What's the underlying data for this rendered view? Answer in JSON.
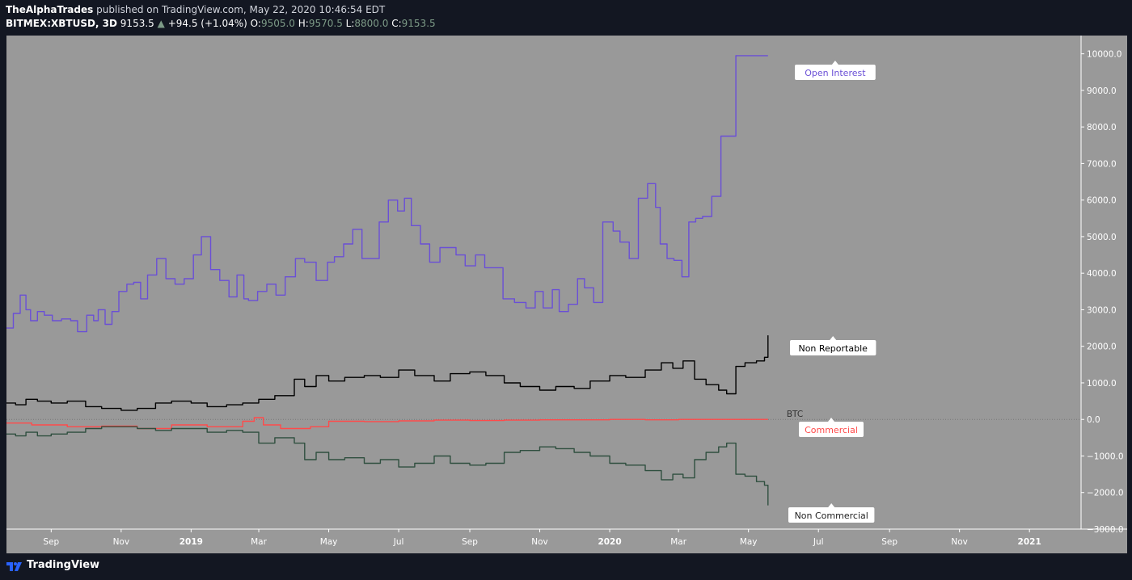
{
  "header": {
    "publisher": "TheAlphaTrades",
    "published_text": "published on TradingView.com, May 22, 2020 10:46:54 EDT",
    "symbol": "BITMEX:XBTUSD, 3D",
    "last": "9153.5",
    "change_arrow": "▲",
    "change": "+94.5 (+1.04%)",
    "o_label": "O:",
    "o_value": "9505.0",
    "h_label": "H:",
    "h_value": "9570.5",
    "l_label": "L:",
    "l_value": "8800.0",
    "c_label": "C:",
    "c_value": "9153.5"
  },
  "footer": {
    "brand": "TradingView",
    "logo_icon": "tradingview-logo-icon"
  },
  "colors": {
    "plot_bg": "#999999",
    "open_interest": "#6a4fd6",
    "non_reportable": "#000000",
    "commercial": "#ff4a4a",
    "non_commercial": "#2f4f3f"
  },
  "chart_data": {
    "type": "line",
    "ylim": [
      -3000,
      10500
    ],
    "yticks": [
      10000,
      9000,
      8000,
      7000,
      6000,
      5000,
      4000,
      3000,
      2000,
      1000,
      0,
      -1000,
      -2000,
      -3000
    ],
    "ytick_labels": [
      "10000.0",
      "9000.0",
      "8000.0",
      "7000.0",
      "6000.0",
      "5000.0",
      "4000.0",
      "3000.0",
      "2000.0",
      "1000.0",
      "0.0",
      "−1000.0",
      "−2000.0",
      "−3000.0"
    ],
    "xlim": [
      "2018-07-24",
      "2021-02-15"
    ],
    "xticks": [
      {
        "date": "2018-09-01",
        "label": "Sep",
        "bold": false
      },
      {
        "date": "2018-11-01",
        "label": "Nov",
        "bold": false
      },
      {
        "date": "2019-01-01",
        "label": "2019",
        "bold": true
      },
      {
        "date": "2019-03-01",
        "label": "Mar",
        "bold": false
      },
      {
        "date": "2019-05-01",
        "label": "May",
        "bold": false
      },
      {
        "date": "2019-07-01",
        "label": "Jul",
        "bold": false
      },
      {
        "date": "2019-09-01",
        "label": "Sep",
        "bold": false
      },
      {
        "date": "2019-11-01",
        "label": "Nov",
        "bold": false
      },
      {
        "date": "2020-01-01",
        "label": "2020",
        "bold": true
      },
      {
        "date": "2020-03-01",
        "label": "Mar",
        "bold": false
      },
      {
        "date": "2020-05-01",
        "label": "May",
        "bold": false
      },
      {
        "date": "2020-07-01",
        "label": "Jul",
        "bold": false
      },
      {
        "date": "2020-09-01",
        "label": "Sep",
        "bold": false
      },
      {
        "date": "2020-11-01",
        "label": "Nov",
        "bold": false
      },
      {
        "date": "2021-01-01",
        "label": "2021",
        "bold": true
      }
    ],
    "zero_line_label": "BTC",
    "series": [
      {
        "name": "Open Interest",
        "color_key": "open_interest",
        "x": [
          "2018-07-24",
          "2018-07-30",
          "2018-08-05",
          "2018-08-10",
          "2018-08-14",
          "2018-08-20",
          "2018-08-26",
          "2018-09-02",
          "2018-09-10",
          "2018-09-18",
          "2018-09-24",
          "2018-10-02",
          "2018-10-08",
          "2018-10-12",
          "2018-10-18",
          "2018-10-24",
          "2018-10-30",
          "2018-11-06",
          "2018-11-12",
          "2018-11-18",
          "2018-11-24",
          "2018-12-02",
          "2018-12-10",
          "2018-12-18",
          "2018-12-26",
          "2019-01-03",
          "2019-01-10",
          "2019-01-18",
          "2019-01-26",
          "2019-02-03",
          "2019-02-10",
          "2019-02-16",
          "2019-02-20",
          "2019-02-28",
          "2019-03-08",
          "2019-03-16",
          "2019-03-24",
          "2019-04-02",
          "2019-04-10",
          "2019-04-20",
          "2019-04-30",
          "2019-05-06",
          "2019-05-14",
          "2019-05-22",
          "2019-05-30",
          "2019-06-08",
          "2019-06-14",
          "2019-06-22",
          "2019-06-30",
          "2019-07-06",
          "2019-07-12",
          "2019-07-20",
          "2019-07-28",
          "2019-08-06",
          "2019-08-12",
          "2019-08-20",
          "2019-08-28",
          "2019-09-06",
          "2019-09-14",
          "2019-09-22",
          "2019-09-30",
          "2019-10-10",
          "2019-10-20",
          "2019-10-28",
          "2019-11-04",
          "2019-11-12",
          "2019-11-18",
          "2019-11-26",
          "2019-12-04",
          "2019-12-10",
          "2019-12-18",
          "2019-12-26",
          "2020-01-04",
          "2020-01-10",
          "2020-01-18",
          "2020-01-26",
          "2020-02-03",
          "2020-02-10",
          "2020-02-14",
          "2020-02-20",
          "2020-02-26",
          "2020-03-04",
          "2020-03-10",
          "2020-03-16",
          "2020-03-22",
          "2020-03-30",
          "2020-04-07",
          "2020-04-14",
          "2020-04-20",
          "2020-04-28",
          "2020-05-03",
          "2020-05-08",
          "2020-05-13",
          "2020-05-18"
        ],
        "y": [
          2500,
          2900,
          3400,
          3000,
          2700,
          2950,
          2850,
          2700,
          2750,
          2700,
          2400,
          2850,
          2700,
          3000,
          2600,
          2950,
          3500,
          3700,
          3750,
          3300,
          3950,
          4400,
          3850,
          3700,
          3850,
          4500,
          5000,
          4100,
          3800,
          3350,
          3950,
          3300,
          3250,
          3500,
          3700,
          3400,
          3900,
          4400,
          4300,
          3800,
          4300,
          4450,
          4800,
          5200,
          4400,
          4400,
          5400,
          6000,
          5700,
          6050,
          5300,
          4800,
          4300,
          4700,
          4700,
          4500,
          4200,
          4500,
          4150,
          4150,
          3300,
          3200,
          3050,
          3500,
          3050,
          3550,
          2950,
          3150,
          3850,
          3600,
          3200,
          5400,
          5150,
          4850,
          4400,
          6050,
          6450,
          5800,
          4800,
          4400,
          4350,
          3900,
          5400,
          5500,
          5550,
          6100,
          7750,
          7750,
          9950,
          9950,
          9950,
          9950,
          9950,
          9950
        ]
      },
      {
        "name": "Non Reportable",
        "color_key": "non_reportable",
        "x": [
          "2018-07-24",
          "2018-08-01",
          "2018-08-10",
          "2018-08-20",
          "2018-09-01",
          "2018-09-15",
          "2018-10-01",
          "2018-10-15",
          "2018-11-01",
          "2018-11-15",
          "2018-12-01",
          "2018-12-15",
          "2019-01-01",
          "2019-01-15",
          "2019-02-01",
          "2019-02-15",
          "2019-03-01",
          "2019-03-15",
          "2019-04-01",
          "2019-04-10",
          "2019-04-20",
          "2019-05-01",
          "2019-05-15",
          "2019-06-01",
          "2019-06-15",
          "2019-07-01",
          "2019-07-15",
          "2019-08-01",
          "2019-08-15",
          "2019-09-01",
          "2019-09-15",
          "2019-10-01",
          "2019-10-15",
          "2019-11-01",
          "2019-11-15",
          "2019-12-01",
          "2019-12-15",
          "2020-01-01",
          "2020-01-15",
          "2020-02-01",
          "2020-02-15",
          "2020-02-25",
          "2020-03-05",
          "2020-03-15",
          "2020-03-25",
          "2020-04-05",
          "2020-04-12",
          "2020-04-20",
          "2020-04-28",
          "2020-05-08",
          "2020-05-15",
          "2020-05-18"
        ],
        "y": [
          450,
          400,
          550,
          500,
          450,
          500,
          350,
          300,
          250,
          300,
          450,
          500,
          450,
          350,
          400,
          450,
          550,
          650,
          1100,
          900,
          1200,
          1050,
          1150,
          1200,
          1150,
          1350,
          1200,
          1050,
          1250,
          1300,
          1200,
          1000,
          900,
          800,
          900,
          850,
          1050,
          1200,
          1150,
          1350,
          1550,
          1400,
          1600,
          1100,
          950,
          800,
          700,
          1450,
          1550,
          1600,
          1700,
          2300
        ]
      },
      {
        "name": "Commercial",
        "color_key": "commercial",
        "x": [
          "2018-07-24",
          "2018-08-15",
          "2018-09-15",
          "2018-10-15",
          "2018-11-15",
          "2018-12-15",
          "2019-01-15",
          "2019-02-15",
          "2019-02-25",
          "2019-03-05",
          "2019-03-20",
          "2019-04-15",
          "2019-05-01",
          "2019-06-01",
          "2019-07-01",
          "2019-08-01",
          "2019-09-01",
          "2019-10-01",
          "2019-11-01",
          "2019-12-01",
          "2020-01-01",
          "2020-02-01",
          "2020-03-01",
          "2020-04-01",
          "2020-05-01",
          "2020-05-18"
        ],
        "y": [
          -100,
          -150,
          -200,
          -180,
          -250,
          -150,
          -200,
          -50,
          50,
          -150,
          -250,
          -200,
          -50,
          -60,
          -40,
          -20,
          -30,
          -20,
          -10,
          -10,
          0,
          -10,
          0,
          0,
          0,
          0
        ]
      },
      {
        "name": "Non Commercial",
        "color_key": "non_commercial",
        "x": [
          "2018-07-24",
          "2018-08-01",
          "2018-08-10",
          "2018-08-20",
          "2018-09-01",
          "2018-09-15",
          "2018-10-01",
          "2018-10-15",
          "2018-11-01",
          "2018-11-15",
          "2018-12-01",
          "2018-12-15",
          "2019-01-01",
          "2019-01-15",
          "2019-02-01",
          "2019-02-15",
          "2019-03-01",
          "2019-03-15",
          "2019-04-01",
          "2019-04-10",
          "2019-04-20",
          "2019-05-01",
          "2019-05-15",
          "2019-06-01",
          "2019-06-15",
          "2019-07-01",
          "2019-07-15",
          "2019-08-01",
          "2019-08-15",
          "2019-09-01",
          "2019-09-15",
          "2019-10-01",
          "2019-10-15",
          "2019-11-01",
          "2019-11-15",
          "2019-12-01",
          "2019-12-15",
          "2020-01-01",
          "2020-01-15",
          "2020-02-01",
          "2020-02-15",
          "2020-02-25",
          "2020-03-05",
          "2020-03-15",
          "2020-03-25",
          "2020-04-05",
          "2020-04-12",
          "2020-04-20",
          "2020-04-28",
          "2020-05-08",
          "2020-05-15",
          "2020-05-18"
        ],
        "y": [
          -400,
          -450,
          -350,
          -450,
          -400,
          -350,
          -250,
          -200,
          -200,
          -250,
          -300,
          -250,
          -250,
          -350,
          -300,
          -350,
          -650,
          -500,
          -650,
          -1100,
          -900,
          -1100,
          -1050,
          -1200,
          -1100,
          -1300,
          -1200,
          -1000,
          -1200,
          -1250,
          -1200,
          -900,
          -850,
          -750,
          -800,
          -900,
          -1000,
          -1200,
          -1250,
          -1400,
          -1650,
          -1500,
          -1600,
          -1100,
          -900,
          -750,
          -650,
          -1500,
          -1550,
          -1700,
          -1800,
          -2350
        ]
      }
    ],
    "legend_labels": [
      {
        "text": "Open Interest",
        "series": "Open Interest"
      },
      {
        "text": "Non Reportable",
        "series": "Non Reportable"
      },
      {
        "text": "Commercial",
        "series": "Commercial"
      },
      {
        "text": "Non Commercial",
        "series": "Non Commercial"
      }
    ]
  }
}
